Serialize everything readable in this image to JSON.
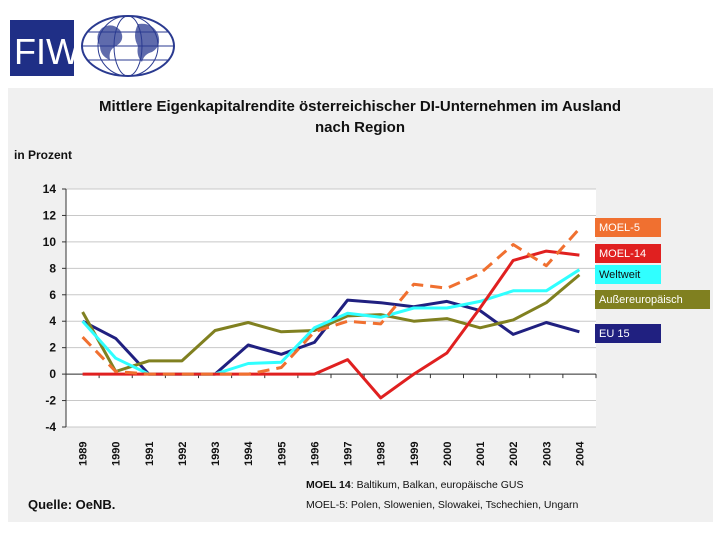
{
  "logo": {
    "text": "FIW"
  },
  "chart_data": {
    "type": "line",
    "title_line1": "Mittlere Eigenkapitalrendite österreichischer DI-Unternehmen im Ausland",
    "title_line2": "nach Region",
    "ylabel": "in Prozent",
    "ylim": [
      -4,
      14
    ],
    "yticks": [
      "14",
      "12",
      "10",
      "8",
      "6",
      "4",
      "2",
      "0",
      "-2",
      "-4"
    ],
    "x": [
      "1989",
      "1990",
      "1991",
      "1992",
      "1993",
      "1994",
      "1995",
      "1996",
      "1997",
      "1998",
      "1999",
      "2000",
      "2001",
      "2002",
      "2003",
      "2004"
    ],
    "grid": true,
    "legend_position": "right",
    "series": [
      {
        "name": "MOEL-5",
        "color": "#f07030",
        "dashed": true,
        "values": [
          2.8,
          0.2,
          0,
          0,
          0,
          0,
          0.5,
          3.2,
          4.0,
          3.8,
          6.8,
          6.5,
          7.6,
          9.8,
          8.2,
          11.0
        ]
      },
      {
        "name": "MOEL-14",
        "color": "#e02020",
        "dashed": false,
        "values": [
          0,
          0,
          0,
          0,
          0,
          0,
          0,
          0,
          1.1,
          -1.8,
          0,
          1.6,
          5.0,
          8.6,
          9.3,
          9.0
        ]
      },
      {
        "name": "Weltweit",
        "color": "#30ffff",
        "dashed": false,
        "values": [
          4.0,
          1.2,
          0,
          0,
          0,
          0.8,
          0.9,
          3.5,
          4.6,
          4.3,
          5.0,
          5.0,
          5.5,
          6.3,
          6.3,
          7.9
        ]
      },
      {
        "name": "Außereuropäisch",
        "color": "#808020",
        "dashed": false,
        "values": [
          4.7,
          0.2,
          1.0,
          1.0,
          3.3,
          3.9,
          3.2,
          3.3,
          4.4,
          4.5,
          4.0,
          4.2,
          3.5,
          4.1,
          5.4,
          7.5
        ]
      },
      {
        "name": "EU 15",
        "color": "#202080",
        "dashed": false,
        "values": [
          4.0,
          2.7,
          0,
          0,
          0,
          2.2,
          1.5,
          2.4,
          5.6,
          5.4,
          5.1,
          5.5,
          4.8,
          3.0,
          3.9,
          3.2
        ]
      }
    ],
    "legend": [
      {
        "label": "MOEL-5",
        "bg": "#f07030",
        "fg": "#ffffff"
      },
      {
        "label": "MOEL-14",
        "bg": "#e02020",
        "fg": "#ffffff"
      },
      {
        "label": "Weltweit",
        "bg": "#30ffff",
        "fg": "#111111"
      },
      {
        "label": "Außereuropäisch",
        "bg": "#808020",
        "fg": "#ffffff"
      },
      {
        "label": "EU 15",
        "bg": "#202080",
        "fg": "#ffffff"
      }
    ]
  },
  "notes": {
    "moel14_bold": "MOEL 14",
    "moel14_text": ": Baltikum, Balkan, europäische GUS",
    "moel5": "MOEL-5: Polen, Slowenien, Slowakei, Tschechien, Ungarn"
  },
  "source": "Quelle: OeNB."
}
